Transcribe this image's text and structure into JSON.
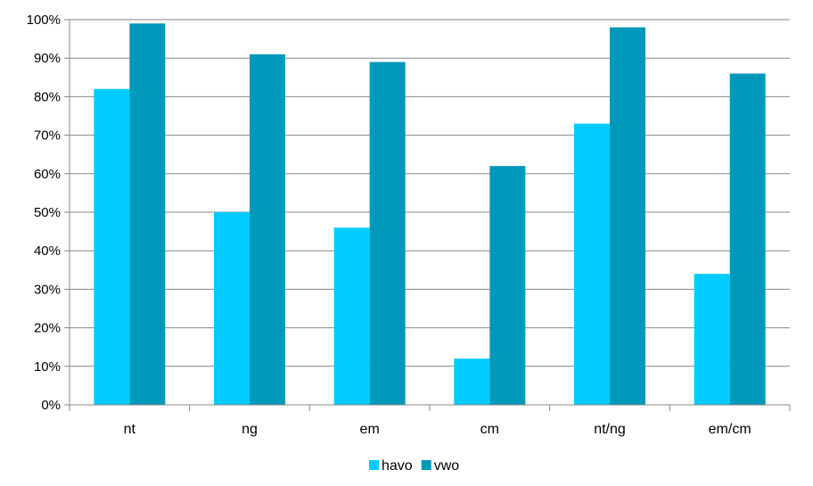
{
  "chart_data": {
    "type": "bar",
    "title": "",
    "xlabel": "",
    "ylabel": "",
    "categories": [
      "nt",
      "ng",
      "em",
      "cm",
      "nt/ng",
      "em/cm"
    ],
    "series": [
      {
        "name": "havo",
        "values": [
          82,
          50,
          46,
          12,
          73,
          34
        ],
        "color": "#00ccff"
      },
      {
        "name": "vwo",
        "values": [
          99,
          91,
          89,
          62,
          98,
          86
        ],
        "color": "#0099bb"
      }
    ],
    "ylim": [
      0,
      100
    ],
    "yticks": [
      "0%",
      "10%",
      "20%",
      "30%",
      "40%",
      "50%",
      "60%",
      "70%",
      "80%",
      "90%",
      "100%"
    ],
    "grid": true,
    "legend_position": "bottom"
  }
}
